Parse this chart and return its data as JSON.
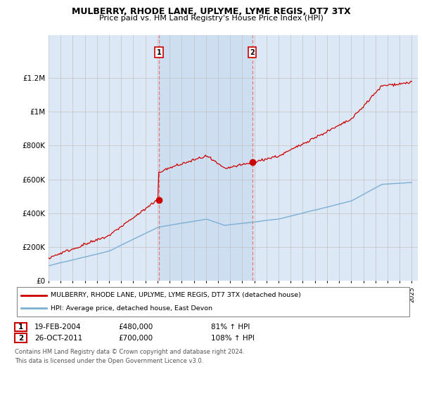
{
  "title": "MULBERRY, RHODE LANE, UPLYME, LYME REGIS, DT7 3TX",
  "subtitle": "Price paid vs. HM Land Registry's House Price Index (HPI)",
  "legend_line1": "MULBERRY, RHODE LANE, UPLYME, LYME REGIS, DT7 3TX (detached house)",
  "legend_line2": "HPI: Average price, detached house, East Devon",
  "ann1_label": "1",
  "ann1_date": "19-FEB-2004",
  "ann1_price": "£480,000",
  "ann1_hpi": "81% ↑ HPI",
  "ann2_label": "2",
  "ann2_date": "26-OCT-2011",
  "ann2_price": "£700,000",
  "ann2_hpi": "108% ↑ HPI",
  "footer": "Contains HM Land Registry data © Crown copyright and database right 2024.\nThis data is licensed under the Open Government Licence v3.0.",
  "sale1_year": 2004.13,
  "sale1_price": 480000,
  "sale2_year": 2011.82,
  "sale2_price": 700000,
  "xmin": 1995,
  "xmax": 2025.5,
  "ymin": 0,
  "ymax": 1450000,
  "yticks": [
    0,
    200000,
    400000,
    600000,
    800000,
    1000000,
    1200000
  ],
  "ytick_labels": [
    "£0",
    "£200K",
    "£400K",
    "£600K",
    "£800K",
    "£1M",
    "£1.2M"
  ],
  "plot_bg_color": "#ffffff",
  "chart_bg_color": "#dce8f5",
  "highlight_color": "#dce8f5",
  "red_color": "#cc0000",
  "blue_color": "#7bafd4",
  "grid_color": "#bbbbbb",
  "vline_color": "#e08080",
  "marker_box_color": "#cc0000",
  "seed": 42
}
